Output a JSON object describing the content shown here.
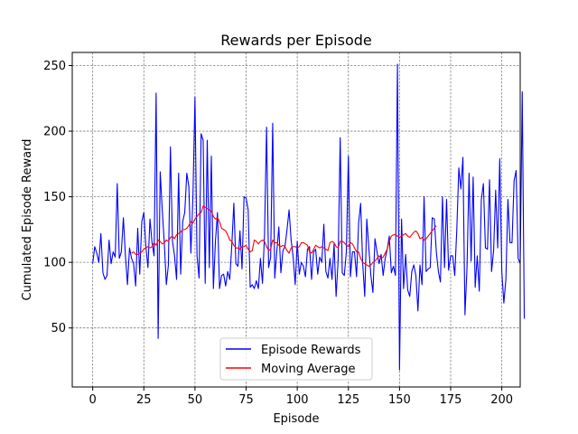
{
  "chart_data": {
    "type": "line",
    "title": "Rewards per Episode",
    "xlabel": "Episode",
    "ylabel": "Cumulated Episode Reward",
    "xlim": [
      -10,
      209
    ],
    "ylim": [
      5,
      260
    ],
    "xticks": [
      0,
      25,
      50,
      75,
      100,
      125,
      150,
      175,
      200
    ],
    "yticks": [
      50,
      100,
      150,
      200,
      250
    ],
    "grid": true,
    "legend_position": "bottom-center",
    "series": [
      {
        "name": "Episode Rewards",
        "color": "#0000ff",
        "x_start": 0,
        "values": [
          99,
          112,
          107,
          100,
          122,
          92,
          87,
          90,
          117,
          99,
          108,
          104,
          160,
          103,
          108,
          134,
          105,
          83,
          111,
          103,
          99,
          82,
          126,
          91,
          131,
          138,
          112,
          96,
          133,
          115,
          105,
          229,
          42,
          169,
          140,
          115,
          83,
          98,
          188,
          116,
          105,
          87,
          168,
          91,
          131,
          138,
          168,
          158,
          107,
          150,
          226,
          105,
          88,
          198,
          193,
          84,
          193,
          96,
          181,
          80,
          116,
          138,
          80,
          90,
          91,
          82,
          93,
          87,
          113,
          145,
          99,
          97,
          124,
          95,
          150,
          149,
          140,
          81,
          83,
          80,
          86,
          80,
          103,
          84,
          121,
          203,
          96,
          104,
          206,
          88,
          108,
          127,
          92,
          109,
          112,
          125,
          140,
          117,
          104,
          83,
          116,
          91,
          100,
          97,
          89,
          110,
          112,
          87,
          108,
          110,
          91,
          104,
          100,
          129,
          93,
          88,
          103,
          87,
          114,
          74,
          102,
          195,
          92,
          90,
          108,
          181,
          89,
          108,
          108,
          89,
          130,
          145,
          99,
          74,
          133,
          111,
          90,
          77,
          118,
          108,
          99,
          106,
          90,
          103,
          110,
          120,
          92,
          97,
          90,
          251,
          18,
          133,
          80,
          106,
          79,
          74,
          93,
          98,
          90,
          63,
          98,
          83,
          150,
          93,
          95,
          96,
          134,
          133,
          108,
          93,
          85,
          150,
          96,
          148,
          94,
          105,
          105,
          90,
          125,
          172,
          156,
          180,
          60,
          96,
          168,
          101,
          165,
          81,
          105,
          78,
          148,
          160,
          111,
          110,
          163,
          93,
          109,
          155,
          111,
          179,
          93,
          69,
          87,
          148,
          115,
          115,
          162,
          170,
          103,
          99,
          230,
          57
        ]
      },
      {
        "name": "Moving Average",
        "color": "#ff0000",
        "x_start": 19,
        "values": [
          107,
          108,
          106,
          106,
          107,
          108,
          110,
          111,
          112,
          111,
          112,
          115,
          113,
          117,
          116,
          114,
          115,
          117,
          116,
          119,
          120,
          118,
          121,
          122,
          123,
          125,
          125,
          126,
          128,
          131,
          130,
          133,
          135,
          137,
          138,
          143,
          142,
          141,
          140,
          139,
          135,
          133,
          134,
          131,
          126,
          125,
          124,
          121,
          117,
          116,
          113,
          111,
          111,
          110,
          112,
          112,
          113,
          110,
          108,
          109,
          117,
          116,
          114,
          116,
          117,
          116,
          112,
          109,
          110,
          117,
          115,
          115,
          113,
          112,
          113,
          112,
          109,
          107,
          111,
          112,
          112,
          111,
          112,
          115,
          115,
          114,
          113,
          108,
          107,
          110,
          113,
          112,
          111,
          112,
          111,
          110,
          109,
          115,
          116,
          115,
          112,
          111,
          116,
          116,
          115,
          113,
          112,
          115,
          114,
          111,
          108,
          108,
          103,
          100,
          99,
          98,
          97,
          98,
          100,
          101,
          103,
          105,
          103,
          104,
          107,
          110,
          116,
          120,
          121,
          121,
          120,
          119,
          120,
          121,
          122,
          120,
          119,
          121,
          123,
          124,
          122,
          118,
          119,
          117,
          118,
          120,
          122,
          124,
          126,
          128
        ]
      }
    ]
  }
}
